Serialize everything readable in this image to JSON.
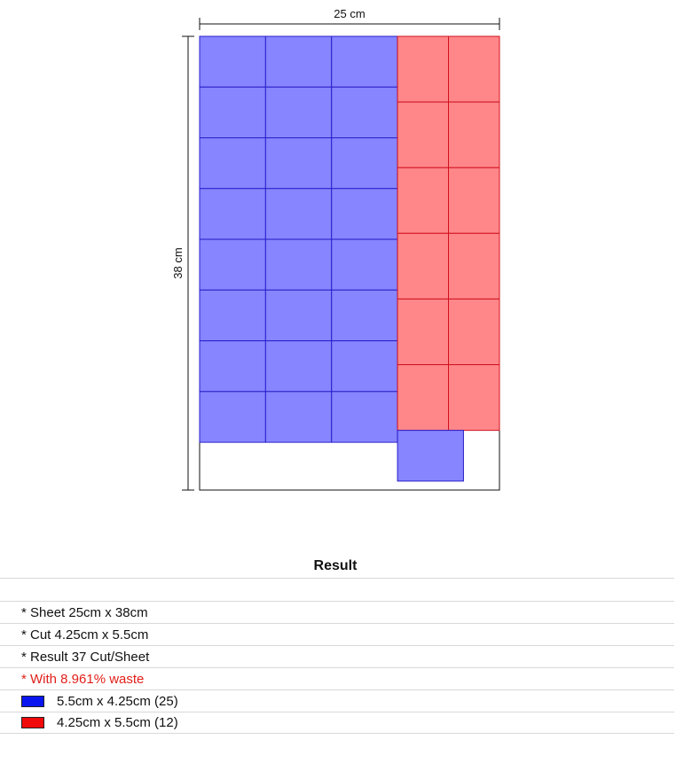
{
  "diagram": {
    "sheet_width_cm": 25,
    "sheet_height_cm": 38,
    "width_label": "25 cm",
    "height_label": "38 cm",
    "pieces": {
      "blue": {
        "w_cm": 5.5,
        "h_cm": 4.25,
        "cols": 3,
        "rows": 8,
        "color": "#8785ff",
        "stroke": "#2a1fc8"
      },
      "red": {
        "w_cm": 4.25,
        "h_cm": 5.5,
        "cols": 2,
        "rows": 6,
        "color": "#ff878a",
        "stroke": "#d0101e"
      },
      "extra_blue": {
        "count": 1
      }
    }
  },
  "result": {
    "title": "Result",
    "lines": [
      "* Sheet 25cm x 38cm",
      "* Cut 4.25cm x 5.5cm",
      "* Result 37 Cut/Sheet"
    ],
    "waste": "* With 8.961% waste",
    "legend": [
      {
        "label": "5.5cm x 4.25cm (25)",
        "color": "#0a16f0"
      },
      {
        "label": "4.25cm x 5.5cm (12)",
        "color": "#f00a0a"
      }
    ]
  }
}
